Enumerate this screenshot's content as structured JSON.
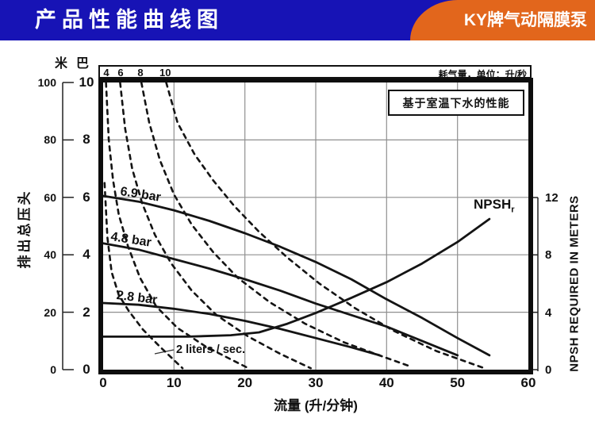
{
  "header": {
    "title": "产品性能曲线图",
    "product": "KY牌气动隔膜泵"
  },
  "colors": {
    "header_blue": "#1713b5",
    "badge_orange": "#e2661c",
    "grid": "#8f8f8f",
    "ink": "#111111"
  },
  "top_strip": {
    "numbers": [
      "4",
      "6",
      "8",
      "10"
    ],
    "unit_label": "耗气量，单位：升/秒"
  },
  "note_box": {
    "text": "基于室温下水的性能"
  },
  "axes": {
    "left_meters": {
      "unit": "米",
      "ticks": [
        100,
        80,
        60,
        40,
        20,
        0
      ]
    },
    "left_bar": {
      "unit": "巴",
      "ticks": [
        10,
        8,
        6,
        4,
        2,
        0
      ]
    },
    "bottom": {
      "title": "流量 (升/分钟)",
      "ticks": [
        0,
        10,
        20,
        30,
        40,
        50,
        60
      ]
    },
    "right": {
      "title": "NPSH REQUIRED IN METERS",
      "ticks": [
        12,
        8,
        4,
        0
      ]
    },
    "left_title": "排出总压头"
  },
  "curve_labels": {
    "p69": "6.9 bar",
    "p48": "4.8 bar",
    "p28": "2.8 bar",
    "air2": "2 liters / sec.",
    "npsh_main": "NPSH",
    "npsh_sub": "r"
  },
  "chart_data": {
    "type": "line",
    "title": "产品性能曲线图",
    "xlabel": "流量 (升/分钟)",
    "ylabel_left": "排出总压头 (米 / 巴)",
    "ylabel_right": "NPSH REQUIRED IN METERS",
    "xlim": [
      0,
      60
    ],
    "ylim_bar": [
      0,
      10
    ],
    "ylim_meters": [
      0,
      100
    ],
    "ylim_npsh": [
      0,
      12
    ],
    "grid": true,
    "note": "基于室温下水的性能",
    "air_consumption_unit": "升/秒",
    "series": [
      {
        "name": "2 liters/sec air",
        "style": "dashed",
        "scale": "bar",
        "points": [
          [
            0.2,
            6.5
          ],
          [
            0.6,
            4.6
          ],
          [
            1.2,
            3.4
          ],
          [
            2.2,
            2.6
          ],
          [
            3.6,
            2.05
          ],
          [
            5.6,
            1.4
          ],
          [
            8,
            0.8
          ],
          [
            11.2,
            0.05
          ]
        ]
      },
      {
        "name": "4 liters/sec air",
        "style": "dashed",
        "scale": "bar",
        "points": [
          [
            0.4,
            10
          ],
          [
            0.8,
            8
          ],
          [
            1.4,
            6.6
          ],
          [
            2.2,
            5.4
          ],
          [
            3.5,
            4.3
          ],
          [
            5.2,
            3.2
          ],
          [
            7.5,
            2.2
          ],
          [
            10.5,
            1.45
          ],
          [
            14.5,
            0.8
          ],
          [
            20.5,
            0.05
          ]
        ]
      },
      {
        "name": "6 liters/sec air",
        "style": "dashed",
        "scale": "bar",
        "points": [
          [
            2.4,
            10
          ],
          [
            3.1,
            8.4
          ],
          [
            4.1,
            7.0
          ],
          [
            5.5,
            5.8
          ],
          [
            7.3,
            4.7
          ],
          [
            9.6,
            3.7
          ],
          [
            12.5,
            2.75
          ],
          [
            16,
            1.9
          ],
          [
            20.5,
            1.15
          ],
          [
            25,
            0.55
          ],
          [
            29.3,
            0.05
          ]
        ]
      },
      {
        "name": "8 liters/sec air",
        "style": "dashed",
        "scale": "bar",
        "points": [
          [
            5.4,
            10
          ],
          [
            6.5,
            8.6
          ],
          [
            8,
            7.3
          ],
          [
            10,
            6.1
          ],
          [
            12.5,
            5.05
          ],
          [
            15.5,
            4.1
          ],
          [
            19,
            3.2
          ],
          [
            23.5,
            2.35
          ],
          [
            28.5,
            1.6
          ],
          [
            34,
            0.95
          ],
          [
            39.5,
            0.45
          ],
          [
            43.5,
            0.1
          ]
        ]
      },
      {
        "name": "10 liters/sec air",
        "style": "dashed",
        "scale": "bar",
        "points": [
          [
            8.9,
            10
          ],
          [
            10.5,
            8.6
          ],
          [
            12.9,
            7.5
          ],
          [
            15.5,
            6.6
          ],
          [
            18.5,
            5.7
          ],
          [
            22,
            4.8
          ],
          [
            26,
            3.9
          ],
          [
            30.5,
            3.0
          ],
          [
            35.5,
            2.15
          ],
          [
            41,
            1.35
          ],
          [
            47,
            0.65
          ],
          [
            53.8,
            0.05
          ]
        ]
      },
      {
        "name": "6.9 bar",
        "style": "solid",
        "scale": "bar",
        "points": [
          [
            0,
            6.05
          ],
          [
            5,
            5.85
          ],
          [
            10,
            5.55
          ],
          [
            15,
            5.18
          ],
          [
            20,
            4.75
          ],
          [
            25,
            4.28
          ],
          [
            30,
            3.75
          ],
          [
            35,
            3.15
          ],
          [
            40,
            2.45
          ],
          [
            45,
            1.8
          ],
          [
            50,
            1.1
          ],
          [
            54.5,
            0.5
          ]
        ]
      },
      {
        "name": "4.8 bar",
        "style": "solid",
        "scale": "bar",
        "points": [
          [
            0,
            4.4
          ],
          [
            5,
            4.18
          ],
          [
            10,
            3.85
          ],
          [
            15,
            3.52
          ],
          [
            20,
            3.15
          ],
          [
            25,
            2.75
          ],
          [
            30,
            2.3
          ],
          [
            35,
            1.9
          ],
          [
            40,
            1.5
          ],
          [
            45,
            1.0
          ],
          [
            50,
            0.5
          ]
        ]
      },
      {
        "name": "2.8 bar",
        "style": "solid",
        "scale": "bar",
        "points": [
          [
            0,
            2.32
          ],
          [
            5,
            2.26
          ],
          [
            10,
            2.12
          ],
          [
            15,
            1.94
          ],
          [
            20,
            1.7
          ],
          [
            25,
            1.42
          ],
          [
            30,
            1.1
          ],
          [
            35,
            0.78
          ],
          [
            39,
            0.5
          ]
        ]
      },
      {
        "name": "NPSHr",
        "style": "solid",
        "scale": "npsh",
        "points": [
          [
            0,
            2.3
          ],
          [
            12,
            2.3
          ],
          [
            18,
            2.4
          ],
          [
            22,
            2.6
          ],
          [
            26,
            3.2
          ],
          [
            30,
            3.95
          ],
          [
            35,
            5.0
          ],
          [
            40,
            6.1
          ],
          [
            45,
            7.4
          ],
          [
            50,
            8.9
          ],
          [
            54.5,
            10.5
          ]
        ]
      }
    ]
  }
}
